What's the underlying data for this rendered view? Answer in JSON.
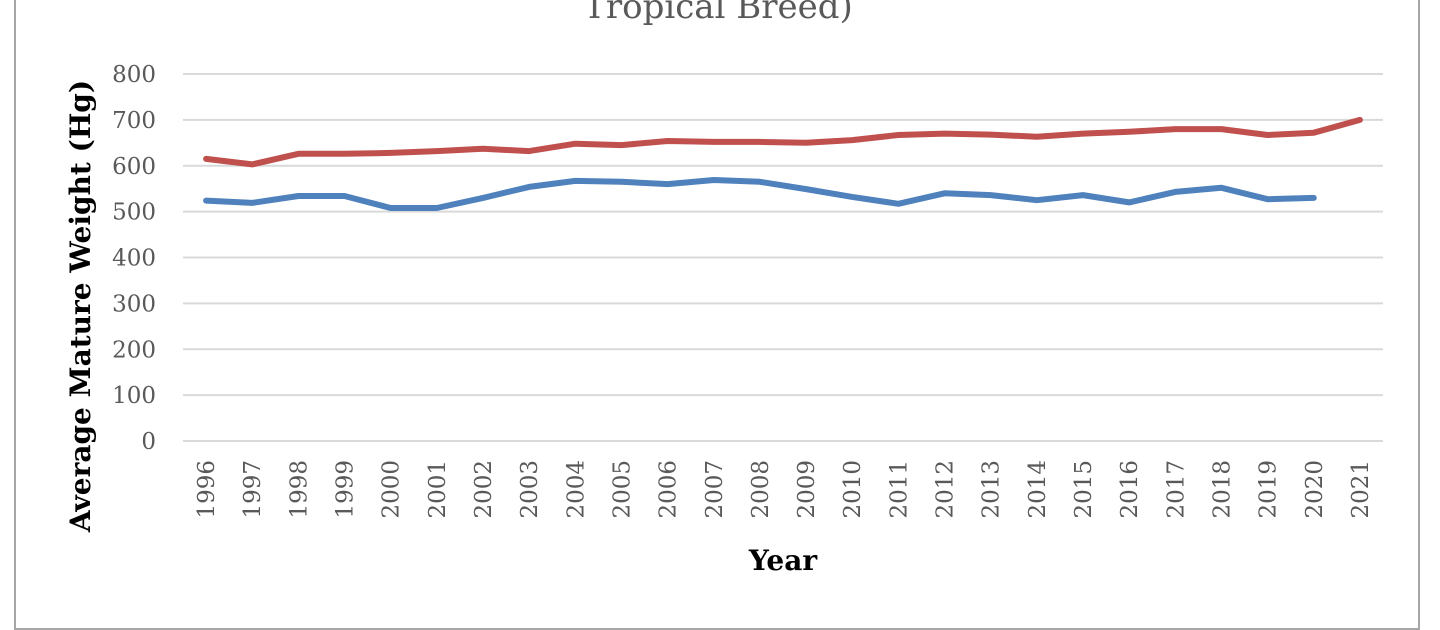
{
  "chart_data": {
    "type": "line",
    "title": "Tropical Breed)",
    "xlabel": "Year",
    "ylabel": "Average Mature Weight (Hg)",
    "ylim": [
      0,
      800
    ],
    "yticks": [
      0,
      100,
      200,
      300,
      400,
      500,
      600,
      700,
      800
    ],
    "grid": true,
    "categories": [
      "1996",
      "1997",
      "1998",
      "1999",
      "2000",
      "2001",
      "2002",
      "2003",
      "2004",
      "2005",
      "2006",
      "2007",
      "2008",
      "2009",
      "2010",
      "2011",
      "2012",
      "2013",
      "2014",
      "2015",
      "2016",
      "2017",
      "2018",
      "2019",
      "2020",
      "2021"
    ],
    "series": [
      {
        "color": "#c0504d",
        "values": [
          615,
          603,
          626,
          626,
          628,
          632,
          637,
          632,
          648,
          645,
          654,
          652,
          652,
          650,
          656,
          667,
          670,
          668,
          663,
          670,
          674,
          680,
          680,
          667,
          672,
          700
        ]
      },
      {
        "color": "#4f81bd",
        "values": [
          524,
          519,
          534,
          534,
          508,
          508,
          530,
          554,
          567,
          565,
          560,
          569,
          565,
          549,
          532,
          517,
          540,
          536,
          525,
          536,
          520,
          543,
          552,
          527,
          530,
          null
        ]
      }
    ],
    "gridline_color": "#d9d9d9"
  }
}
